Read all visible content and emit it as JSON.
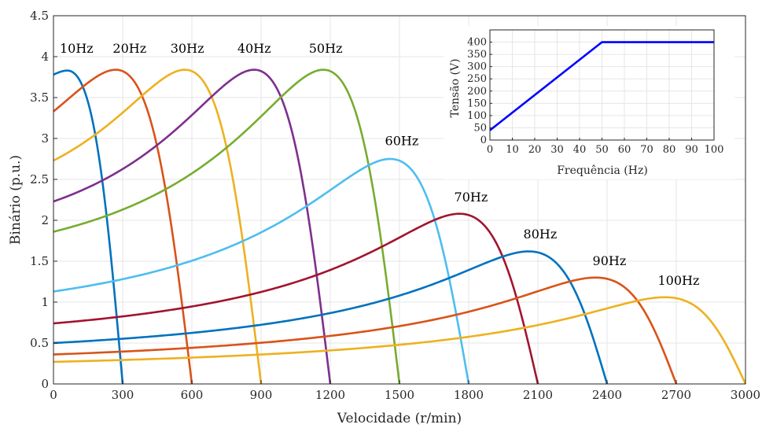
{
  "chart_data": [
    {
      "type": "line",
      "title": "",
      "xlabel": "Velocidade (r/min)",
      "ylabel": "Binário (p.u.)",
      "xlim": [
        0,
        3000
      ],
      "ylim": [
        0,
        4.5
      ],
      "xticks": [
        "0",
        "300",
        "600",
        "900",
        "1200",
        "1500",
        "1800",
        "2100",
        "2400",
        "2700",
        "3000"
      ],
      "yticks": [
        "0",
        "0.5",
        "1",
        "1.5",
        "2",
        "2.5",
        "3",
        "3.5",
        "4",
        "4.5"
      ],
      "grid": true,
      "legend": "none",
      "series": [
        {
          "name": "10Hz",
          "color": "#0072BD",
          "peak_speed": 60,
          "peak_torque": 3.83,
          "sync_speed": 300,
          "start_torque": 3.78
        },
        {
          "name": "20Hz",
          "color": "#D95319",
          "peak_speed": 270,
          "peak_torque": 3.84,
          "sync_speed": 600,
          "start_torque": 3.33
        },
        {
          "name": "30Hz",
          "color": "#EDB120",
          "peak_speed": 570,
          "peak_torque": 3.84,
          "sync_speed": 900,
          "start_torque": 2.73
        },
        {
          "name": "40Hz",
          "color": "#7E2F8E",
          "peak_speed": 870,
          "peak_torque": 3.84,
          "sync_speed": 1200,
          "start_torque": 2.23
        },
        {
          "name": "50Hz",
          "color": "#77AC30",
          "peak_speed": 1170,
          "peak_torque": 3.84,
          "sync_speed": 1500,
          "start_torque": 1.86
        },
        {
          "name": "60Hz",
          "color": "#4DBEEE",
          "peak_speed": 1460,
          "peak_torque": 2.75,
          "sync_speed": 1800,
          "start_torque": 1.13
        },
        {
          "name": "70Hz",
          "color": "#A2142F",
          "peak_speed": 1760,
          "peak_torque": 2.08,
          "sync_speed": 2100,
          "start_torque": 0.74
        },
        {
          "name": "80Hz",
          "color": "#0072BD",
          "peak_speed": 2060,
          "peak_torque": 1.62,
          "sync_speed": 2400,
          "start_torque": 0.5
        },
        {
          "name": "90Hz",
          "color": "#D95319",
          "peak_speed": 2350,
          "peak_torque": 1.3,
          "sync_speed": 2700,
          "start_torque": 0.36
        },
        {
          "name": "100Hz",
          "color": "#EDB120",
          "peak_speed": 2650,
          "peak_torque": 1.06,
          "sync_speed": 3000,
          "start_torque": 0.27
        }
      ],
      "label_positions": [
        {
          "text": "10Hz",
          "x": 100,
          "y": 4.05
        },
        {
          "text": "20Hz",
          "x": 330,
          "y": 4.05
        },
        {
          "text": "30Hz",
          "x": 580,
          "y": 4.05
        },
        {
          "text": "40Hz",
          "x": 870,
          "y": 4.05
        },
        {
          "text": "50Hz",
          "x": 1180,
          "y": 4.05
        },
        {
          "text": "60Hz",
          "x": 1510,
          "y": 2.92
        },
        {
          "text": "70Hz",
          "x": 1810,
          "y": 2.23
        },
        {
          "text": "80Hz",
          "x": 2110,
          "y": 1.78
        },
        {
          "text": "90Hz",
          "x": 2410,
          "y": 1.45
        },
        {
          "text": "100Hz",
          "x": 2710,
          "y": 1.21
        }
      ]
    },
    {
      "type": "line",
      "title": "",
      "xlabel": "Frequência (Hz)",
      "ylabel": "Tensão (V)",
      "xlim": [
        0,
        100
      ],
      "ylim": [
        0,
        450
      ],
      "xticks": [
        "0",
        "10",
        "20",
        "30",
        "40",
        "50",
        "60",
        "70",
        "80",
        "90",
        "100"
      ],
      "yticks": [
        "0",
        "50",
        "100",
        "150",
        "200",
        "250",
        "300",
        "350",
        "400"
      ],
      "grid": true,
      "legend": "none",
      "series": [
        {
          "color": "#0000FF",
          "x": [
            0,
            50,
            100
          ],
          "y": [
            40,
            400,
            400
          ]
        }
      ]
    }
  ]
}
